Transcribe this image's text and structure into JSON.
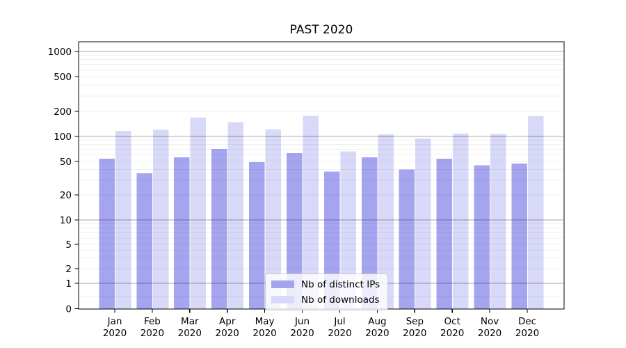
{
  "title": "PAST 2020",
  "legend": {
    "items": [
      {
        "label": "Nb of distinct IPs",
        "color": "#a5a5ef"
      },
      {
        "label": "Nb of downloads",
        "color": "#d8d8f8"
      }
    ]
  },
  "chart_data": {
    "type": "bar",
    "title": "PAST 2020",
    "categories": [
      "Jan 2020",
      "Feb 2020",
      "Mar 2020",
      "Apr 2020",
      "May 2020",
      "Jun 2020",
      "Jul 2020",
      "Aug 2020",
      "Sep 2020",
      "Oct 2020",
      "Nov 2020",
      "Dec 2020"
    ],
    "series": [
      {
        "name": "Nb of distinct IPs",
        "color": "#a5a5ef",
        "values": [
          54,
          36,
          56,
          71,
          49,
          63,
          38,
          56,
          40,
          54,
          45,
          47
        ]
      },
      {
        "name": "Nb of downloads",
        "color": "#d8d8f8",
        "values": [
          117,
          120,
          168,
          148,
          121,
          177,
          66,
          106,
          94,
          108,
          107,
          174
        ]
      }
    ],
    "xlabel": "",
    "ylabel": "",
    "yscale": "symlog",
    "y_ticks": [
      0,
      1,
      2,
      5,
      10,
      20,
      50,
      100,
      200,
      500,
      1000
    ],
    "ylim": [
      0,
      1250
    ],
    "grid": true,
    "legend_position": "lower center"
  },
  "colors": {
    "background": "#ffffff",
    "axis": "#000000",
    "major_gridline": "#a9a9a9",
    "minor_gridline": "#f0f0f0"
  }
}
